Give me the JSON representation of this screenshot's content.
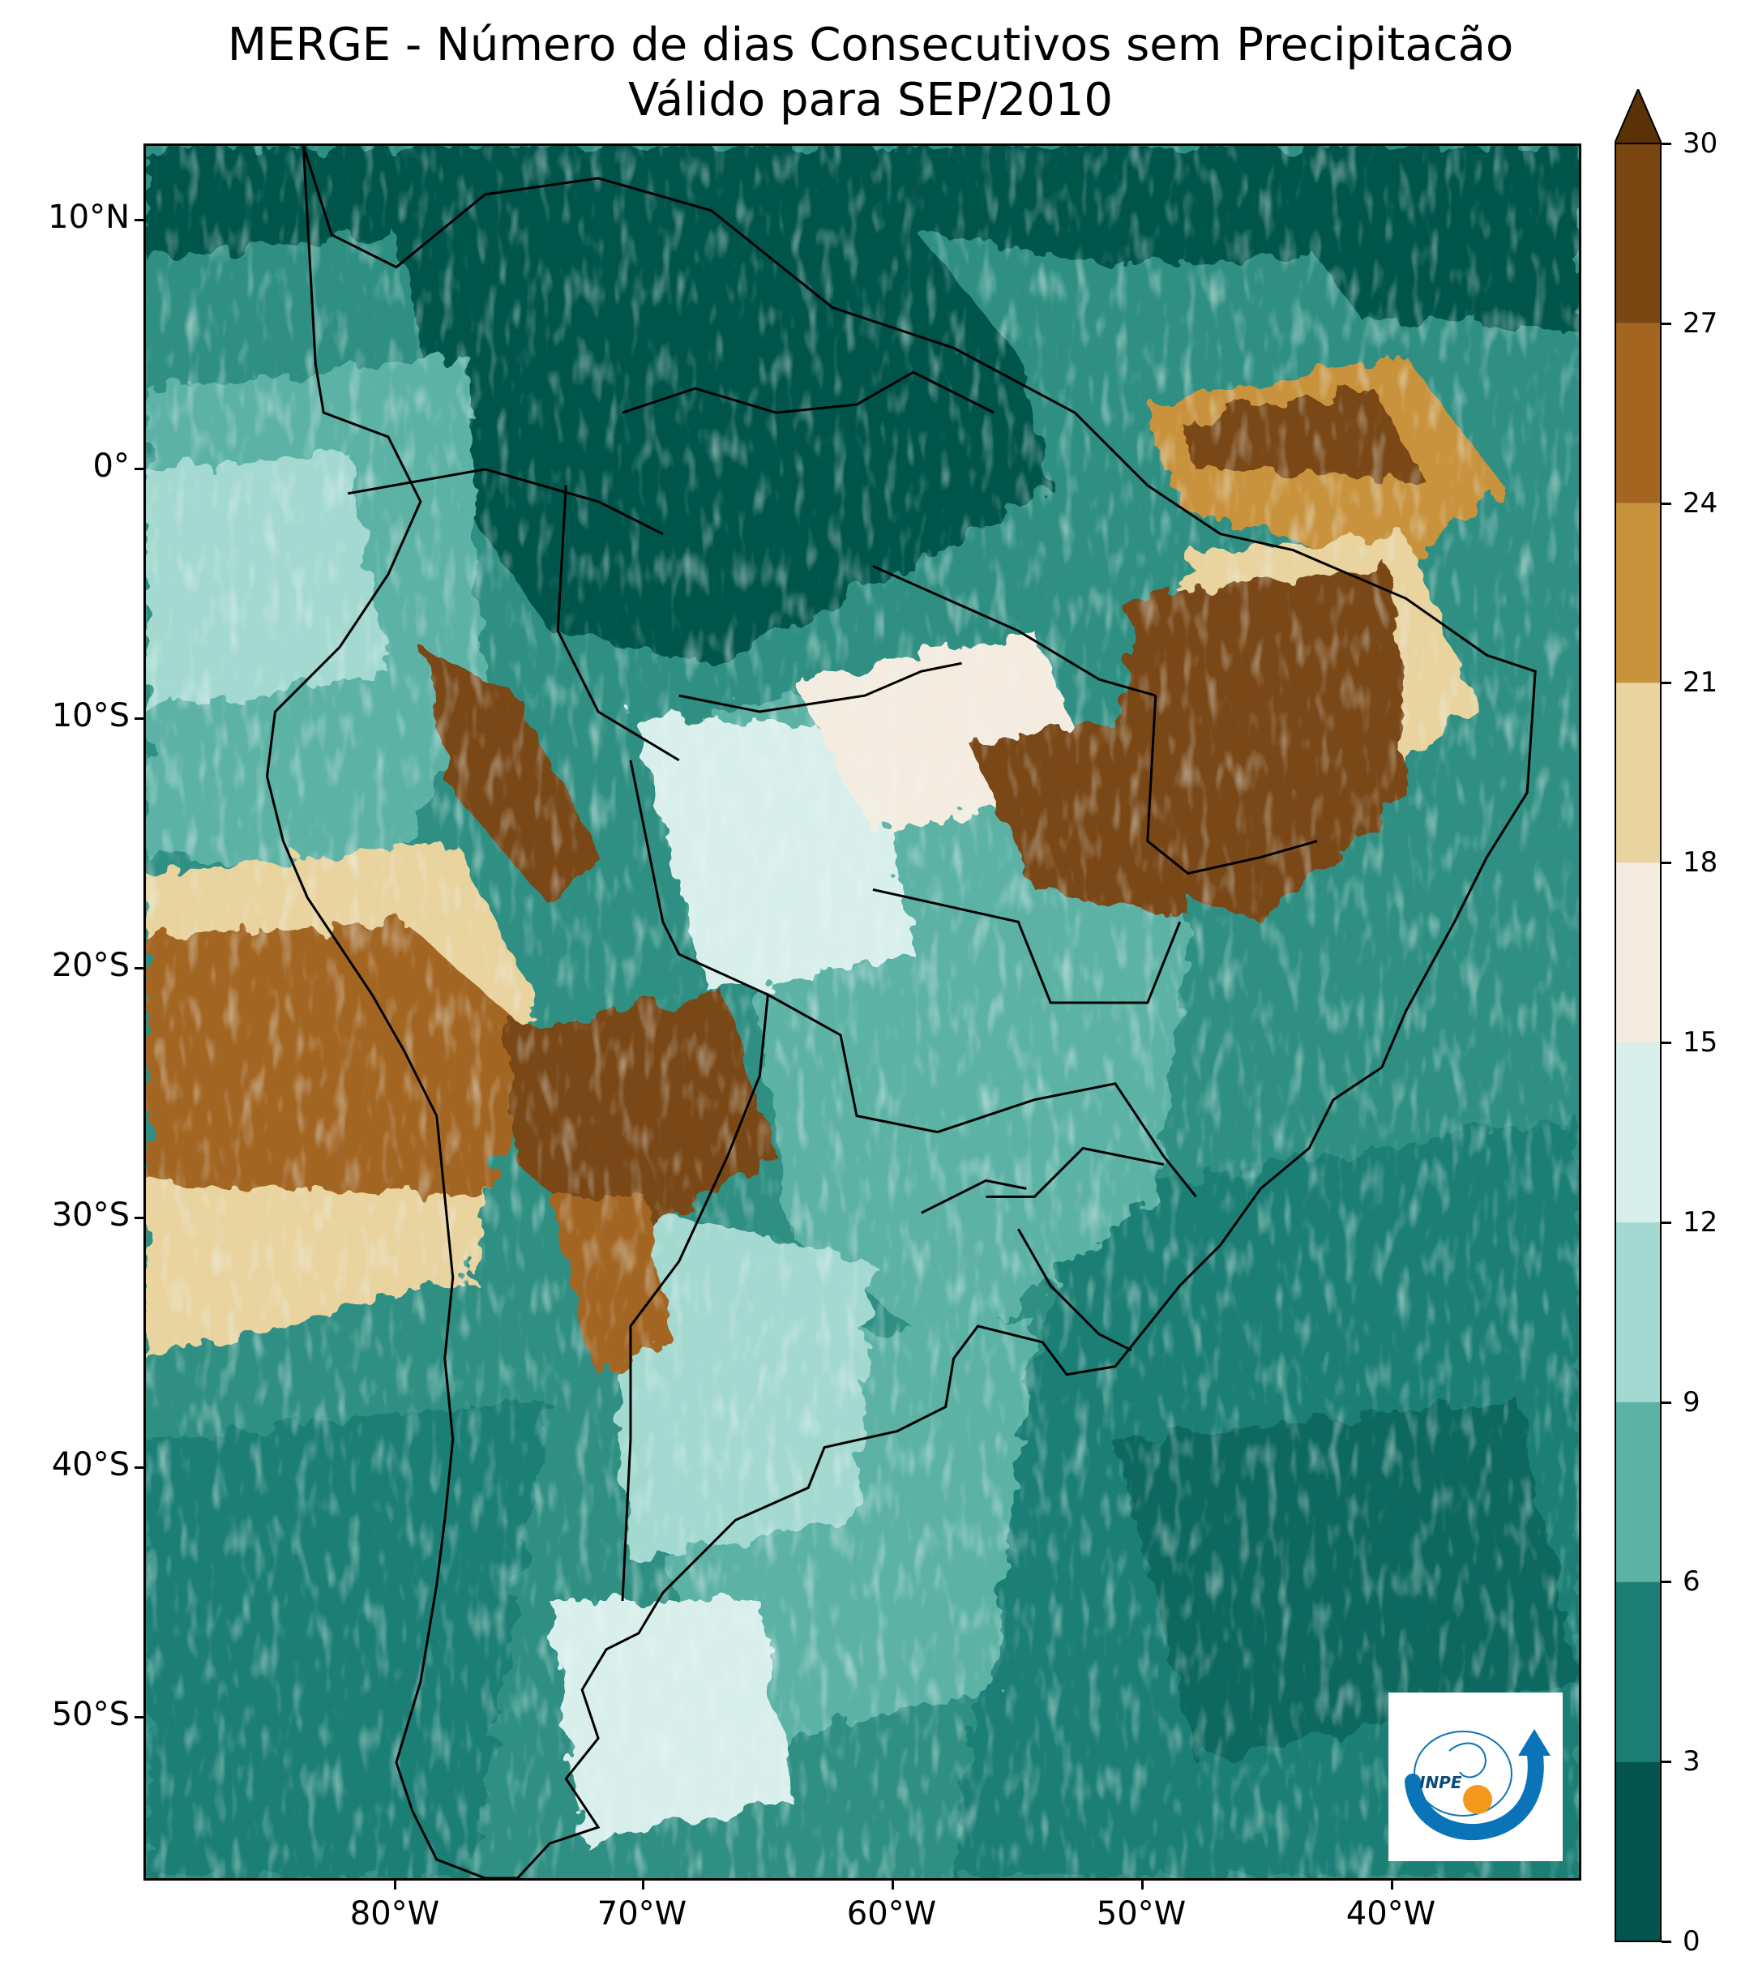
{
  "title": {
    "line1": "MERGE - Número de dias Consecutivos sem Precipitacão",
    "line2": "Válido para SEP/2010"
  },
  "axes": {
    "lat_labels": [
      "10°N",
      "0°",
      "10°S",
      "20°S",
      "30°S",
      "40°S",
      "50°S"
    ],
    "lon_labels": [
      "80°W",
      "70°W",
      "60°W",
      "50°W",
      "40°W"
    ]
  },
  "colorbar": {
    "tick_labels": [
      "0",
      "3",
      "6",
      "9",
      "12",
      "15",
      "18",
      "21",
      "24",
      "27",
      "30"
    ],
    "extend": "max",
    "colors": [
      "#02544c",
      "#1b7f76",
      "#5db2a6",
      "#a3d9d1",
      "#d9efec",
      "#f4ece0",
      "#e9d39e",
      "#c9933d",
      "#a36520",
      "#7a4612",
      "#5b3208"
    ]
  },
  "logo": {
    "text": "INPE",
    "colors": {
      "arrow": "#0b73b8",
      "sun": "#f39a1e"
    }
  }
}
